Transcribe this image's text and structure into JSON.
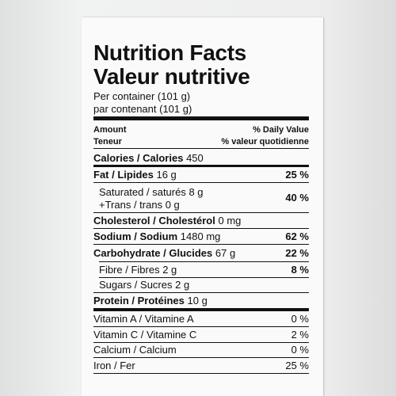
{
  "header": {
    "title": "Nutrition Facts",
    "title_fr": "Valeur nutritive",
    "serving": "Per container (101 g)",
    "serving_fr": "par contenant (101 g)"
  },
  "columns": {
    "amount": "Amount",
    "amount_fr": "Teneur",
    "dv": "% Daily Value",
    "dv_fr": "% valeur quotidienne"
  },
  "calories": {
    "label": "Calories / Calories",
    "amount": "450"
  },
  "nutrients": [
    {
      "label": "Fat / Lipides",
      "amount": "16 g",
      "dv": "25 %"
    },
    {
      "label": "Saturated / saturés",
      "amount": "8 g",
      "label2": "+Trans / trans",
      "amount2": "0 g",
      "dv": "40 %"
    },
    {
      "label": "Cholesterol / Cholestérol",
      "amount": "0 mg"
    },
    {
      "label": "Sodium / Sodium",
      "amount": "1480 mg",
      "dv": "62 %"
    },
    {
      "label": "Carbohydrate / Glucides",
      "amount": "67 g",
      "dv": "22 %"
    },
    {
      "label": "Fibre / Fibres",
      "amount": "2 g",
      "dv": "8 %"
    },
    {
      "label": "Sugars / Sucres",
      "amount": "2 g"
    },
    {
      "label": "Protein / Protéines",
      "amount": "10 g"
    }
  ],
  "vitamins": [
    {
      "label": "Vitamin A / Vitamine A",
      "dv": "0 %"
    },
    {
      "label": "Vitamin C / Vitamine C",
      "dv": "2 %"
    },
    {
      "label": "Calcium / Calcium",
      "dv": "0 %"
    },
    {
      "label": "Iron / Fer",
      "dv": "25 %"
    }
  ]
}
